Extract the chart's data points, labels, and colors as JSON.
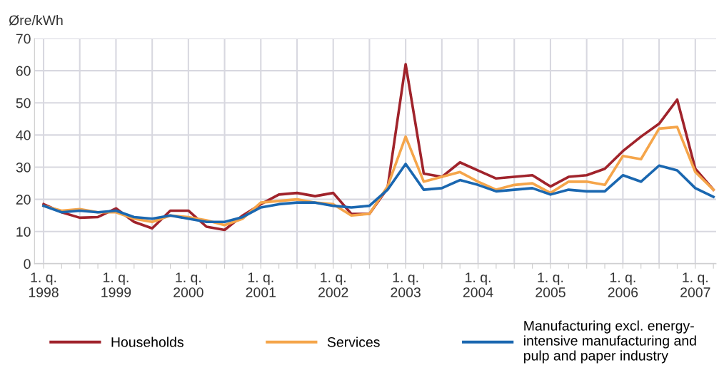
{
  "chart_data": {
    "type": "line",
    "ylabel": "Øre/kWh",
    "categories": [
      "1. q.\n1998",
      null,
      null,
      null,
      "1. q.\n1999",
      null,
      null,
      null,
      "1. q.\n2000",
      null,
      null,
      null,
      "1. q.\n2001",
      null,
      null,
      null,
      "1. q.\n2002",
      null,
      null,
      null,
      "1. q.\n2003",
      null,
      null,
      null,
      "1. q.\n2004",
      null,
      null,
      null,
      "1. q.\n2005",
      null,
      null,
      null,
      "1. q.\n2006",
      null,
      null,
      null,
      "1. q.\n2007",
      null
    ],
    "series": [
      {
        "name": "Households",
        "color": "#a0232b",
        "values": [
          18.5,
          16,
          14.3,
          14.5,
          17.2,
          13,
          11,
          16.5,
          16.5,
          11.5,
          10.5,
          15,
          18.5,
          21.5,
          22,
          21,
          22,
          15.5,
          15.5,
          23.5,
          62,
          28,
          27,
          31.5,
          29,
          26.5,
          27,
          27.5,
          24,
          27,
          27.5,
          29.5,
          35,
          39.5,
          43.5,
          51,
          29.5,
          23
        ]
      },
      {
        "name": "Services",
        "color": "#f5a54a",
        "values": [
          18,
          16.5,
          17,
          16,
          16,
          14,
          13,
          15,
          14.5,
          13.5,
          12,
          14,
          19,
          19.5,
          20,
          19,
          18.5,
          15,
          15.5,
          24,
          39.5,
          25.5,
          27,
          28.5,
          25.5,
          23,
          24.5,
          25,
          22,
          25.5,
          25.5,
          24.5,
          33.5,
          32.5,
          42,
          42.5,
          28.5,
          23
        ]
      },
      {
        "name": "Manufacturing excl. energy-\nintensive manufacturing and\npulp and paper industry",
        "color": "#1a67b0",
        "values": [
          18,
          16,
          16.5,
          16,
          16.5,
          14.5,
          14,
          15,
          14,
          13,
          13,
          14.5,
          17.5,
          18.5,
          19,
          19,
          18,
          17.5,
          18,
          23,
          31,
          23,
          23.5,
          26,
          24.5,
          22.5,
          23,
          23.5,
          21.5,
          23,
          22.5,
          22.5,
          27.5,
          25.5,
          30.5,
          29,
          23.5,
          20.8
        ]
      }
    ],
    "ylim": [
      0,
      70
    ],
    "yticks": [
      0,
      10,
      20,
      30,
      40,
      50,
      60,
      70
    ],
    "grid": true,
    "legend": "bottom",
    "line_style": "solid",
    "marker": "none"
  }
}
